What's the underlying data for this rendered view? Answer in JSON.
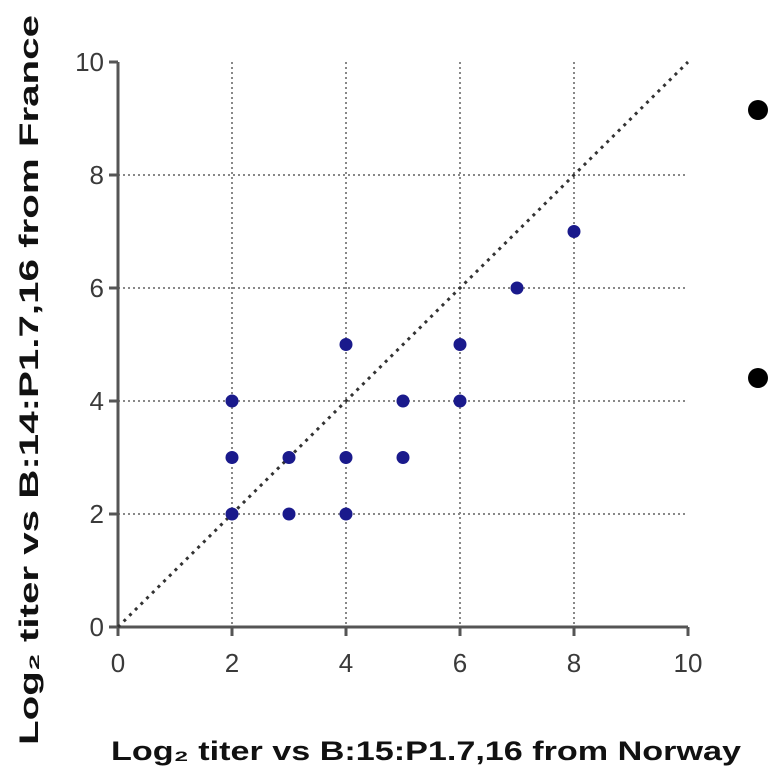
{
  "chart_data": {
    "type": "scatter",
    "xlabel": "Log₂ titer vs  B:15:P1.7,16 from Norway",
    "ylabel": "Log₂ titer vs B:14:P1.7,16 from France",
    "xlim": [
      0,
      10
    ],
    "ylim": [
      0,
      10
    ],
    "x_ticks": [
      "0",
      "2",
      "4",
      "6",
      "8",
      "10"
    ],
    "y_ticks": [
      "0",
      "2",
      "4",
      "6",
      "8",
      "10"
    ],
    "grid": true,
    "reference_line": {
      "x": [
        0,
        10
      ],
      "y": [
        0,
        10
      ],
      "style": "dotted"
    },
    "series": [
      {
        "points": [
          {
            "x": 2,
            "y": 2
          },
          {
            "x": 2,
            "y": 3
          },
          {
            "x": 2,
            "y": 4
          },
          {
            "x": 3,
            "y": 2
          },
          {
            "x": 3,
            "y": 3
          },
          {
            "x": 4,
            "y": 2
          },
          {
            "x": 4,
            "y": 3
          },
          {
            "x": 4,
            "y": 5
          },
          {
            "x": 5,
            "y": 3
          },
          {
            "x": 5,
            "y": 4
          },
          {
            "x": 6,
            "y": 4
          },
          {
            "x": 6,
            "y": 5
          },
          {
            "x": 7,
            "y": 6
          },
          {
            "x": 8,
            "y": 7
          }
        ]
      }
    ],
    "colors": {
      "points": "#1a1a8c",
      "grid": "#888888",
      "axes": "#555555",
      "reference": "#333333"
    }
  }
}
